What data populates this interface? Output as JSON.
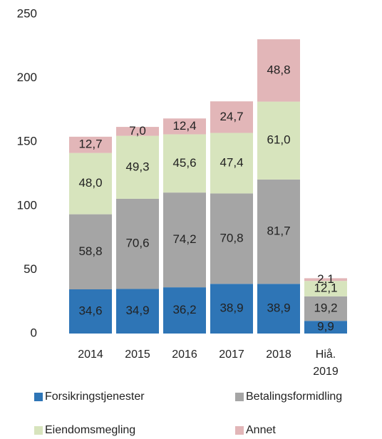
{
  "chart_data": {
    "type": "stacked_bar",
    "categories": [
      "2014",
      "2015",
      "2016",
      "2017",
      "2018",
      "Hiå. 2019"
    ],
    "series": [
      {
        "name": "Forsikringstjenester",
        "color": "#2e75b6",
        "values": [
          34.6,
          34.9,
          36.2,
          38.9,
          38.9,
          9.9
        ],
        "value_labels": [
          "34,6",
          "34,9",
          "36,2",
          "38,9",
          "38,9",
          "9,9"
        ]
      },
      {
        "name": "Betalingsformidling",
        "color": "#a5a5a5",
        "values": [
          58.8,
          70.6,
          74.2,
          70.8,
          81.7,
          19.2
        ],
        "value_labels": [
          "58,8",
          "70,6",
          "74,2",
          "70,8",
          "81,7",
          "19,2"
        ]
      },
      {
        "name": "Eiendomsmegling",
        "color": "#d7e4bd",
        "values": [
          48.0,
          49.3,
          45.6,
          47.4,
          61.0,
          12.1
        ],
        "value_labels": [
          "48,0",
          "49,3",
          "45,6",
          "47,4",
          "61,0",
          "12,1"
        ]
      },
      {
        "name": "Annet",
        "color": "#e2b6b8",
        "values": [
          12.7,
          7.0,
          12.4,
          24.7,
          48.8,
          2.1
        ],
        "value_labels": [
          "12,7",
          "7,0",
          "12,4",
          "24,7",
          "48,8",
          "2,1"
        ]
      }
    ],
    "ylim": [
      0,
      250
    ],
    "yticks": [
      0,
      50,
      100,
      150,
      200,
      250
    ],
    "grid": false,
    "legend": "bottom"
  }
}
